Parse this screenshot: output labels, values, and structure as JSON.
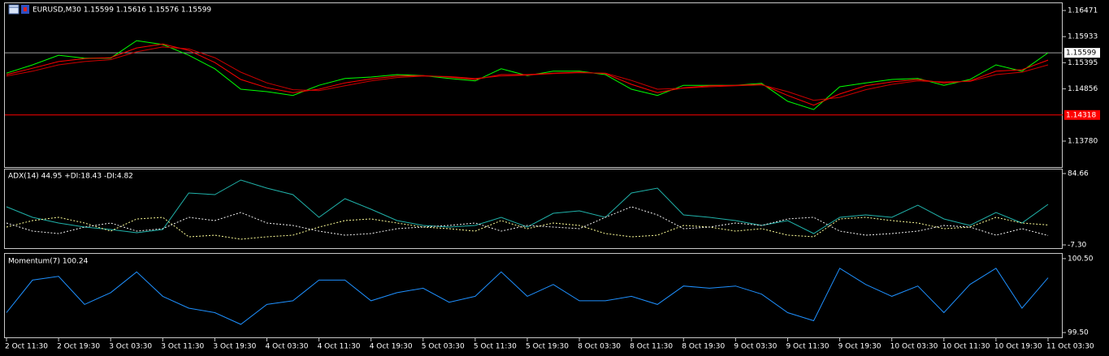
{
  "chart_data": [
    {
      "type": "line",
      "title": "EURUSD,M30  1.15599 1.15616 1.15576 1.15599",
      "xlim": [
        0,
        40.5
      ],
      "ylim": [
        1.13245,
        1.16621
      ],
      "yticks": [
        1.16471,
        1.15933,
        1.15395,
        1.14856,
        {
          "value": 1.1378,
          "label": "1.13780"
        }
      ],
      "hlines": [
        {
          "value": 1.15599,
          "color": "#a0a0a0"
        },
        {
          "value": 1.14318,
          "color": "#ff0000"
        }
      ],
      "series": [
        {
          "name": "EURUSD",
          "color": "#00ff00",
          "values": [
            1.1518,
            1.1535,
            1.1555,
            1.1549,
            1.1549,
            1.1585,
            1.1577,
            1.1555,
            1.1527,
            1.1485,
            1.148,
            1.1472,
            1.1493,
            1.1507,
            1.151,
            1.1515,
            1.1513,
            1.1507,
            1.1502,
            1.1527,
            1.1513,
            1.1522,
            1.1522,
            1.1515,
            1.1485,
            1.1472,
            1.1493,
            1.1493,
            1.1493,
            1.1497,
            1.146,
            1.1443,
            1.149,
            1.1498,
            1.1505,
            1.1507,
            1.1493,
            1.1505,
            1.1535,
            1.1522,
            1.156
          ]
        },
        {
          "color": "#ff0000",
          "values": [
            1.1515,
            1.1528,
            1.1542,
            1.1548,
            1.155,
            1.157,
            1.1578,
            1.1565,
            1.154,
            1.1505,
            1.1488,
            1.1478,
            1.1485,
            1.1498,
            1.1506,
            1.1512,
            1.1513,
            1.151,
            1.1505,
            1.1515,
            1.1515,
            1.1518,
            1.152,
            1.1517,
            1.1495,
            1.1478,
            1.1488,
            1.1492,
            1.1493,
            1.1495,
            1.1472,
            1.1452,
            1.1475,
            1.1492,
            1.15,
            1.1505,
            1.1498,
            1.1502,
            1.1522,
            1.1525,
            1.1545
          ]
        },
        {
          "color": "#cc0000",
          "values": [
            1.1512,
            1.1522,
            1.1535,
            1.1542,
            1.1546,
            1.1562,
            1.1572,
            1.1568,
            1.155,
            1.152,
            1.1498,
            1.1484,
            1.1482,
            1.1492,
            1.1502,
            1.1509,
            1.1512,
            1.1511,
            1.1507,
            1.1512,
            1.1514,
            1.1517,
            1.1519,
            1.1518,
            1.1503,
            1.1485,
            1.1487,
            1.149,
            1.1492,
            1.1494,
            1.148,
            1.1462,
            1.1468,
            1.1484,
            1.1495,
            1.1502,
            1.15,
            1.1501,
            1.1515,
            1.152,
            1.1535
          ]
        }
      ]
    },
    {
      "type": "line",
      "title": "ADX(14) 44.95 +DI:18.43 -DI:4.82",
      "xlim": [
        0,
        40.5
      ],
      "ylim": [
        -11.48,
        89.88
      ],
      "yticks": [
        84.66,
        {
          "value": -7.3,
          "label": "-7.30"
        }
      ],
      "series": [
        {
          "color": "#20b2aa",
          "dashed": false,
          "values": [
            41.8,
            28.2,
            20.9,
            15.7,
            12.6,
            8.4,
            12.6,
            59.6,
            57.5,
            76.3,
            65.8,
            57.5,
            28.2,
            52.3,
            38.7,
            24.0,
            17.8,
            15.7,
            17.8,
            28.2,
            15.7,
            33.5,
            36.6,
            28.2,
            59.6,
            65.8,
            31.4,
            28.2,
            24.0,
            17.8,
            24.0,
            7.3,
            28.2,
            31.4,
            28.2,
            43.9,
            26.1,
            17.8,
            34.5,
            20.9,
            44.95
          ]
        },
        {
          "color": "#ffff99",
          "dashed": true,
          "values": [
            15.7,
            24.0,
            28.2,
            20.9,
            10.5,
            26.1,
            28.2,
            3.2,
            5.2,
            0.0,
            3.2,
            5.2,
            15.7,
            24.0,
            26.1,
            20.9,
            15.7,
            13.6,
            10.5,
            24.0,
            13.6,
            20.9,
            17.8,
            7.3,
            3.2,
            5.2,
            17.8,
            15.7,
            10.5,
            13.6,
            5.2,
            3.2,
            26.1,
            28.2,
            24.0,
            20.9,
            13.6,
            15.7,
            28.2,
            20.9,
            18.43
          ]
        },
        {
          "color": "#f0f0f0",
          "dashed": true,
          "values": [
            20.9,
            10.5,
            7.3,
            15.7,
            20.9,
            10.5,
            13.6,
            28.2,
            24.0,
            34.5,
            20.9,
            17.8,
            10.5,
            5.2,
            7.3,
            13.6,
            15.7,
            17.8,
            20.9,
            10.5,
            17.8,
            15.7,
            13.6,
            28.2,
            41.8,
            31.4,
            13.6,
            15.7,
            20.9,
            17.8,
            26.1,
            28.2,
            10.5,
            5.2,
            7.3,
            10.5,
            17.8,
            15.7,
            5.2,
            13.6,
            4.82
          ]
        }
      ]
    },
    {
      "type": "line",
      "title": "Momentum(7) 100.24",
      "xlim": [
        0,
        40.5
      ],
      "ylim": [
        99.435,
        100.565
      ],
      "yticks": [
        {
          "value": 100.5,
          "label": "100.50"
        },
        {
          "value": 99.5,
          "label": "99.50"
        }
      ],
      "xticks": [
        {
          "value": 0,
          "label": "2 Oct 11:30"
        },
        {
          "value": 2,
          "label": "2 Oct 19:30"
        },
        {
          "value": 4,
          "label": "3 Oct 03:30"
        },
        {
          "value": 6,
          "label": "3 Oct 11:30"
        },
        {
          "value": 8,
          "label": "3 Oct 19:30"
        },
        {
          "value": 10,
          "label": "4 Oct 03:30"
        },
        {
          "value": 12,
          "label": "4 Oct 11:30"
        },
        {
          "value": 14,
          "label": "4 Oct 19:30"
        },
        {
          "value": 16,
          "label": "5 Oct 03:30"
        },
        {
          "value": 18,
          "label": "5 Oct 11:30"
        },
        {
          "value": 20,
          "label": "5 Oct 19:30"
        },
        {
          "value": 22,
          "label": "8 Oct 03:30"
        },
        {
          "value": 24,
          "label": "8 Oct 11:30"
        },
        {
          "value": 26,
          "label": "8 Oct 19:30"
        },
        {
          "value": 28,
          "label": "9 Oct 03:30"
        },
        {
          "value": 30,
          "label": "9 Oct 11:30"
        },
        {
          "value": 32,
          "label": "9 Oct 19:30"
        },
        {
          "value": 34,
          "label": "10 Oct 03:30"
        },
        {
          "value": 36,
          "label": "10 Oct 11:30"
        },
        {
          "value": 38,
          "label": "10 Oct 19:30"
        },
        {
          "value": 40,
          "label": "11 Oct 03:30"
        }
      ],
      "series": [
        {
          "color": "#1e90ff",
          "values": [
            99.77,
            100.21,
            100.26,
            99.88,
            100.04,
            100.32,
            99.99,
            99.83,
            99.77,
            99.61,
            99.88,
            99.93,
            100.21,
            100.21,
            99.93,
            100.04,
            100.1,
            99.91,
            99.99,
            100.32,
            99.99,
            100.15,
            99.93,
            99.93,
            99.99,
            99.88,
            100.13,
            100.1,
            100.13,
            100.02,
            99.77,
            99.66,
            100.37,
            100.15,
            99.99,
            100.13,
            99.77,
            100.15,
            100.37,
            99.83,
            100.24
          ]
        }
      ]
    }
  ]
}
